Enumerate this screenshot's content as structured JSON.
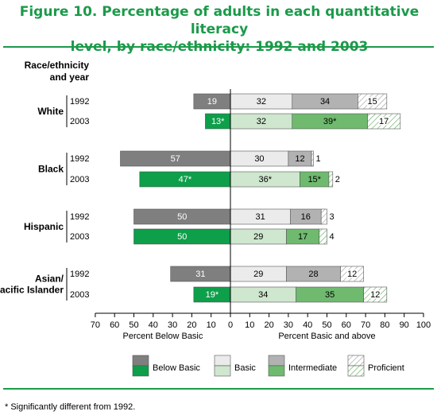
{
  "title_line1": "Figure 10. Percentage of adults in each quantitative literacy",
  "title_line2": "level, by race/ethnicity: 1992 and 2003",
  "footnote": "* Significantly different from 1992.",
  "colors": {
    "title_green": "#1b9a4a",
    "gray_below": "#7f7f7f",
    "gray_basic": "#ebebeb",
    "gray_intermediate": "#b2b2b2",
    "green_below": "#0d9f4a",
    "green_basic": "#cfe6cf",
    "green_intermediate": "#6fba6f"
  },
  "chart_data": {
    "type": "bar",
    "orientation": "horizontal-diverging",
    "row_header_line1": "Race/ethnicity",
    "row_header_line2": "and year",
    "left_axis_label": "Percent Below Basic",
    "right_axis_label": "Percent Basic and above",
    "left_ticks": [
      "70",
      "60",
      "50",
      "40",
      "30",
      "20",
      "10",
      "0"
    ],
    "right_ticks": [
      "10",
      "20",
      "30",
      "40",
      "50",
      "60",
      "70",
      "80",
      "90",
      "100"
    ],
    "xlim": [
      -70,
      100
    ],
    "legend": {
      "below_basic": "Below Basic",
      "basic": "Basic",
      "intermediate": "Intermediate",
      "proficient": "Proficient"
    },
    "groups": [
      {
        "name_lines": [
          "White"
        ],
        "rows": [
          {
            "year": "1992",
            "color_set": "gray",
            "values": {
              "below_basic": 19,
              "basic": 32,
              "intermediate": 34,
              "proficient": 15
            },
            "labels": {
              "below_basic": "19",
              "basic": "32",
              "intermediate": "34",
              "proficient": "15"
            }
          },
          {
            "year": "2003",
            "color_set": "green",
            "values": {
              "below_basic": 13,
              "basic": 32,
              "intermediate": 39,
              "proficient": 17
            },
            "labels": {
              "below_basic": "13*",
              "basic": "32",
              "intermediate": "39*",
              "proficient": "17"
            }
          }
        ]
      },
      {
        "name_lines": [
          "Black"
        ],
        "rows": [
          {
            "year": "1992",
            "color_set": "gray",
            "values": {
              "below_basic": 57,
              "basic": 30,
              "intermediate": 12,
              "proficient": 1
            },
            "labels": {
              "below_basic": "57",
              "basic": "30",
              "intermediate": "12",
              "proficient": "1"
            }
          },
          {
            "year": "2003",
            "color_set": "green",
            "values": {
              "below_basic": 47,
              "basic": 36,
              "intermediate": 15,
              "proficient": 2
            },
            "labels": {
              "below_basic": "47*",
              "basic": "36*",
              "intermediate": "15*",
              "proficient": "2"
            }
          }
        ]
      },
      {
        "name_lines": [
          "Hispanic"
        ],
        "rows": [
          {
            "year": "1992",
            "color_set": "gray",
            "values": {
              "below_basic": 50,
              "basic": 31,
              "intermediate": 16,
              "proficient": 3
            },
            "labels": {
              "below_basic": "50",
              "basic": "31",
              "intermediate": "16",
              "proficient": "3"
            }
          },
          {
            "year": "2003",
            "color_set": "green",
            "values": {
              "below_basic": 50,
              "basic": 29,
              "intermediate": 17,
              "proficient": 4
            },
            "labels": {
              "below_basic": "50",
              "basic": "29",
              "intermediate": "17",
              "proficient": "4"
            }
          }
        ]
      },
      {
        "name_lines": [
          "Asian/",
          "Pacific Islander"
        ],
        "rows": [
          {
            "year": "1992",
            "color_set": "gray",
            "values": {
              "below_basic": 31,
              "basic": 29,
              "intermediate": 28,
              "proficient": 12
            },
            "labels": {
              "below_basic": "31",
              "basic": "29",
              "intermediate": "28",
              "proficient": "12"
            }
          },
          {
            "year": "2003",
            "color_set": "green",
            "values": {
              "below_basic": 19,
              "basic": 34,
              "intermediate": 35,
              "proficient": 12
            },
            "labels": {
              "below_basic": "19*",
              "basic": "34",
              "intermediate": "35",
              "proficient": "12"
            }
          }
        ]
      }
    ]
  }
}
